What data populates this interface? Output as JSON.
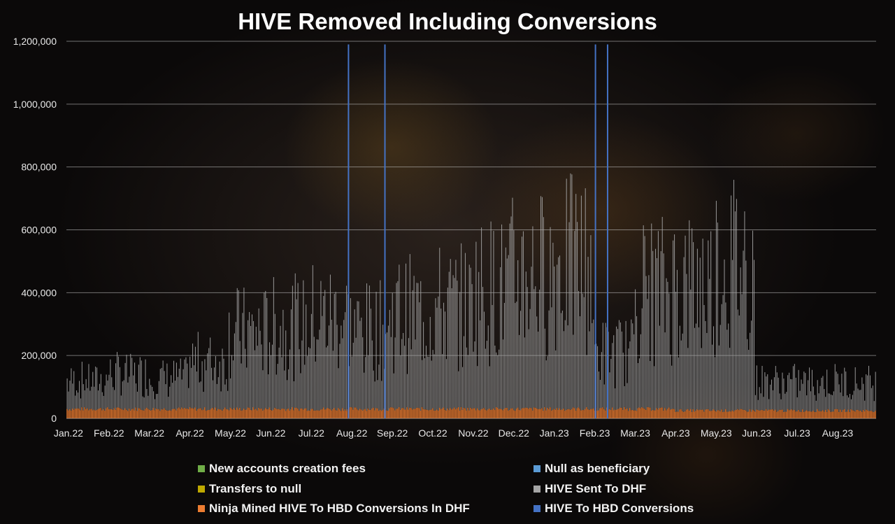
{
  "chart_data": {
    "type": "bar",
    "title": "HIVE Removed Including Conversions",
    "xlabel": "",
    "ylabel": "",
    "ylim": [
      0,
      1200000
    ],
    "y_ticks": [
      "0",
      "200,000",
      "400,000",
      "600,000",
      "800,000",
      "1,000,000",
      "1,200,000"
    ],
    "y_tick_values": [
      0,
      200000,
      400000,
      600000,
      800000,
      1000000,
      1200000
    ],
    "x_tick_labels": [
      "Jan.22",
      "Feb.22",
      "Mar.22",
      "Apr.22",
      "May.22",
      "Jun.22",
      "Jul.22",
      "Aug.22",
      "Sep.22",
      "Oct.22",
      "Nov.22",
      "Dec.22",
      "Jan.23",
      "Feb.23",
      "Mar.23",
      "Apr.23",
      "May.23",
      "Jun.23",
      "Jul.23",
      "Aug.23"
    ],
    "grid": true,
    "stacked": true,
    "legend_position": "bottom",
    "legend": [
      {
        "label": "New accounts creation fees",
        "color": "#70ad47"
      },
      {
        "label": "Null as beneficiary",
        "color": "#5b9bd5"
      },
      {
        "label": "Transfers to null",
        "color": "#bfa900"
      },
      {
        "label": "HIVE Sent To DHF",
        "color": "#a5a5a5"
      },
      {
        "label": "Ninja Mined HIVE To HBD Conversions In DHF",
        "color": "#ed7d31"
      },
      {
        "label": "HIVE To HBD Conversions",
        "color": "#4472c4"
      }
    ],
    "monthly_average": {
      "categories": [
        "Jan.22",
        "Feb.22",
        "Mar.22",
        "Apr.22",
        "May.22",
        "Jun.22",
        "Jul.22",
        "Aug.22",
        "Sep.22",
        "Oct.22",
        "Nov.22",
        "Dec.22",
        "Jan.23",
        "Feb.23",
        "Mar.23",
        "Apr.23",
        "May.23",
        "Jun.23",
        "Jul.23",
        "Aug.23"
      ],
      "series": [
        {
          "name": "HIVE Sent To DHF",
          "values": [
            90000,
            110000,
            100000,
            150000,
            240000,
            260000,
            290000,
            250000,
            300000,
            320000,
            380000,
            430000,
            460000,
            180000,
            380000,
            400000,
            470000,
            90000,
            90000,
            90000
          ]
        },
        {
          "name": "Ninja Mined HIVE To HBD Conversions In DHF",
          "values": [
            30000,
            30000,
            30000,
            30000,
            30000,
            30000,
            30000,
            30000,
            30000,
            30000,
            30000,
            30000,
            30000,
            30000,
            30000,
            25000,
            25000,
            25000,
            25000,
            25000
          ]
        }
      ]
    },
    "spikes": {
      "name": "HIVE To HBD Conversions",
      "dates": [
        "Jul.22 (late)",
        "Aug.22 (late)",
        "Feb.23",
        "Feb.23 (late)"
      ],
      "values": [
        1190000,
        1190000,
        1190000,
        1190000
      ]
    }
  }
}
